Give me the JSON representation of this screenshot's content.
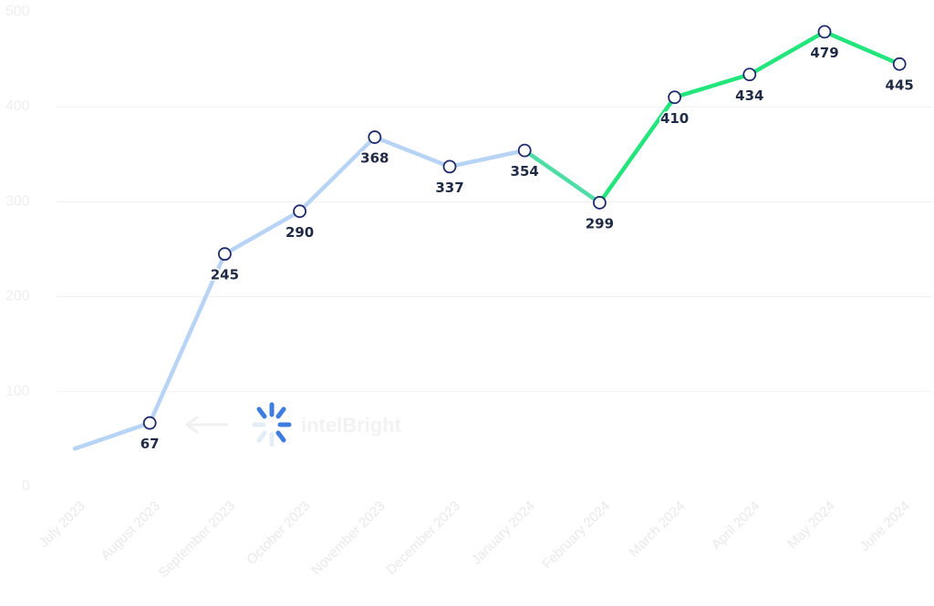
{
  "chart_data": {
    "type": "line",
    "categories": [
      "July 2023",
      "August 2023",
      "September 2023",
      "October 2023",
      "November 2023",
      "December 2023",
      "January 2024",
      "February 2024",
      "March 2024",
      "April 2024",
      "May 2024",
      "June 2024"
    ],
    "values": [
      40,
      67,
      245,
      290,
      368,
      337,
      354,
      299,
      410,
      434,
      479,
      445
    ],
    "data_labels": [
      null,
      "67",
      "245",
      "290",
      "368",
      "337",
      "354",
      "299",
      "410",
      "434",
      "479",
      "445"
    ],
    "ylim": [
      0,
      500
    ],
    "yticks": [
      "0",
      "100",
      "200",
      "300",
      "400",
      "500"
    ],
    "grid": true,
    "colors": {
      "past_line": "#b7d3f5",
      "transition_line": "#4fdca6",
      "recent_line": "#22e57c",
      "marker_stroke": "#1f2a6b",
      "marker_fill": "#ffffff"
    }
  },
  "watermark": {
    "text": "intelBright",
    "icon": "spinner-logo-icon",
    "arrow_icon": "arrow-left-icon"
  }
}
